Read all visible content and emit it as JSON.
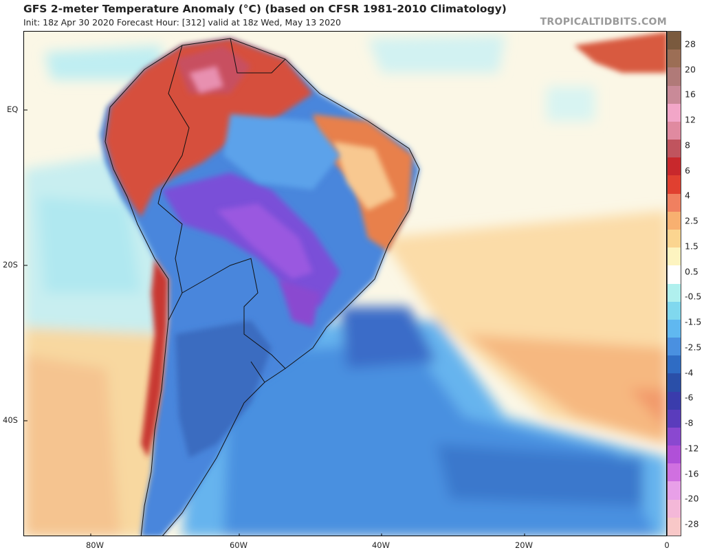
{
  "header": {
    "title": "GFS 2-meter Temperature Anomaly (°C) (based on CFSR 1981-2010 Climatology)",
    "subtitle": "Init: 18z Apr 30 2020   Forecast Hour: [312]   valid at 18z Wed, May 13 2020",
    "brand": "TROPICALTIDBITS.COM"
  },
  "map": {
    "lat_labels": [
      "EQ",
      "20S",
      "40S"
    ],
    "lon_labels": [
      "80W",
      "60W",
      "40W",
      "20W",
      "0"
    ]
  },
  "colorbar": {
    "labels": [
      "28",
      "20",
      "16",
      "12",
      "8",
      "6",
      "4",
      "2.5",
      "1.5",
      "0.5",
      "-0.5",
      "-1.5",
      "-2.5",
      "-4",
      "-6",
      "-8",
      "-12",
      "-16",
      "-20",
      "-28"
    ],
    "colors": [
      "#7a5a3e",
      "#9c6e55",
      "#b07a78",
      "#c98a98",
      "#f2a6c8",
      "#e08aa0",
      "#c0545e",
      "#c8282c",
      "#e04030",
      "#f08060",
      "#f8b070",
      "#fbd590",
      "#fdf4c0",
      "#ffffff",
      "#b0f0ee",
      "#80d8ee",
      "#60b8f0",
      "#4a90e0",
      "#2f6cc4",
      "#2a4fa8",
      "#3a3cac",
      "#5a3cbc",
      "#8a48d0",
      "#b050d8",
      "#d070e0",
      "#e8a0e8",
      "#f4b8d8",
      "#f8c8c8"
    ]
  }
}
